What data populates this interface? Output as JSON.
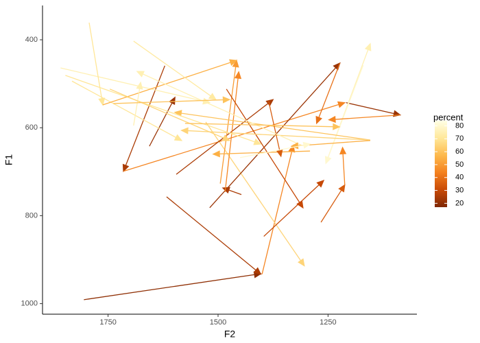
{
  "chart_data": {
    "type": "arrow",
    "x_label": "F2",
    "y_label": "F1",
    "xlim": [
      1048,
      1899
    ],
    "ylim": [
      322,
      1024
    ],
    "x_reversed": true,
    "y_reversed": true,
    "xticks": [
      1750,
      1500,
      1250
    ],
    "yticks": [
      400,
      600,
      800,
      1000
    ],
    "legend_title": "percent",
    "legend_ticks": [
      20,
      30,
      40,
      50,
      60,
      70,
      80
    ],
    "color_range": [
      17,
      84
    ],
    "color_stops": [
      "#7f2704",
      "#c84a06",
      "#f4811f",
      "#fdb94c",
      "#ffe89a",
      "#ffffe5"
    ],
    "segments": {
      "x0": [
        1805,
        1617,
        1400,
        1528,
        1396,
        1266,
        1212,
        1209,
        1255,
        1170,
        1621,
        1715,
        1656,
        1595,
        1519,
        1495,
        1447,
        1484,
        1481,
        1223,
        1086,
        1154,
        1154,
        1291,
        1385,
        1858,
        1847,
        1832,
        1793,
        1762,
        1692,
        1692,
        1310,
        1746,
        1738,
        1154,
        1450,
        1575
      ],
      "y0": [
        991,
        757,
        933,
        587,
        847,
        815,
        730,
        543,
        681,
        458,
        459,
        699,
        642,
        706,
        782,
        727,
        752,
        746,
        512,
        453,
        571,
        628,
        628,
        653,
        540,
        464,
        481,
        494,
        361,
        548,
        403,
        595,
        640,
        512,
        545,
        629,
        668,
        590
      ],
      "x1": [
        1403,
        1403,
        1329,
        1304,
        1260,
        1212,
        1217,
        1086,
        1154,
        1255,
        1715,
        1212,
        1598,
        1375,
        1223,
        1458,
        1489,
        1453,
        1307,
        1276,
        1248,
        1598,
        1583,
        1511,
        1357,
        1519,
        1403,
        1583,
        1762,
        1458,
        1505,
        1676,
        1684,
        1474,
        1474,
        1333,
        1291,
        1224
      ],
      "y1": [
        932,
        933,
        640,
        914,
        720,
        730,
        645,
        571,
        409,
        681,
        699,
        543,
        531,
        536,
        453,
        447,
        737,
        473,
        782,
        590,
        582,
        565,
        606,
        660,
        665,
        543,
        637,
        629,
        548,
        447,
        536,
        497,
        472,
        629,
        536,
        642,
        637,
        598
      ],
      "percent": [
        20,
        25,
        45,
        65,
        30,
        35,
        45,
        22,
        75,
        80,
        25,
        45,
        22,
        25,
        22,
        50,
        25,
        45,
        30,
        40,
        45,
        60,
        65,
        55,
        35,
        75,
        70,
        70,
        70,
        55,
        72,
        75,
        75,
        65,
        60,
        55,
        80,
        60
      ]
    }
  }
}
